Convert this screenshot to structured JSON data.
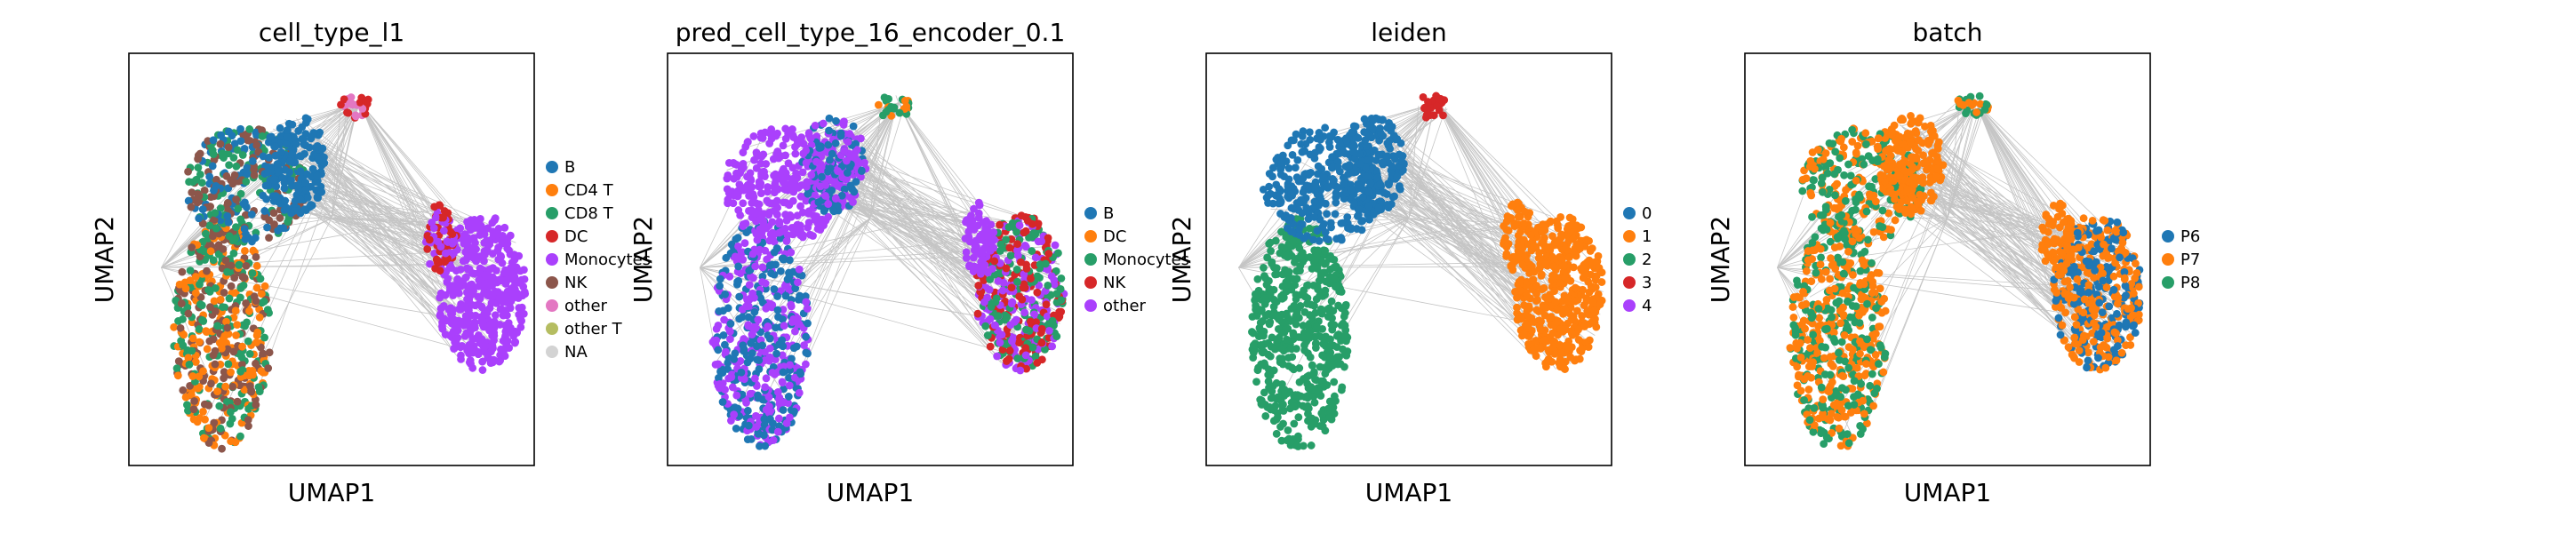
{
  "chart_data": [
    {
      "type": "scatter",
      "title": "cell_type_l1",
      "xlabel": "UMAP1",
      "ylabel": "UMAP2",
      "grid": false,
      "legend_position": "right",
      "legend": [
        {
          "label": "B",
          "color": "#1f77b4"
        },
        {
          "label": "CD4 T",
          "color": "#ff7f0e"
        },
        {
          "label": "CD8 T",
          "color": "#279e68"
        },
        {
          "label": "DC",
          "color": "#d62728"
        },
        {
          "label": "Monocytes",
          "color": "#aa40fc"
        },
        {
          "label": "NK",
          "color": "#8c564b"
        },
        {
          "label": "other",
          "color": "#e377c2"
        },
        {
          "label": "other T",
          "color": "#b5bd61"
        },
        {
          "label": "NA",
          "color": "#d3d3d3"
        }
      ]
    },
    {
      "type": "scatter",
      "title": "pred_cell_type_16_encoder_0.1",
      "xlabel": "UMAP1",
      "ylabel": "UMAP2",
      "grid": false,
      "legend_position": "right",
      "legend": [
        {
          "label": "B",
          "color": "#1f77b4"
        },
        {
          "label": "DC",
          "color": "#ff7f0e"
        },
        {
          "label": "Monocytes",
          "color": "#279e68"
        },
        {
          "label": "NK",
          "color": "#d62728"
        },
        {
          "label": "other",
          "color": "#aa40fc"
        }
      ]
    },
    {
      "type": "scatter",
      "title": "leiden",
      "xlabel": "UMAP1",
      "ylabel": "UMAP2",
      "grid": false,
      "legend_position": "right",
      "legend": [
        {
          "label": "0",
          "color": "#1f77b4"
        },
        {
          "label": "1",
          "color": "#ff7f0e"
        },
        {
          "label": "2",
          "color": "#279e68"
        },
        {
          "label": "3",
          "color": "#d62728"
        },
        {
          "label": "4",
          "color": "#aa40fc"
        }
      ]
    },
    {
      "type": "scatter",
      "title": "batch",
      "xlabel": "UMAP1",
      "ylabel": "UMAP2",
      "grid": false,
      "legend_position": "right",
      "legend": [
        {
          "label": "P6",
          "color": "#1f77b4"
        },
        {
          "label": "P7",
          "color": "#ff7f0e"
        },
        {
          "label": "P8",
          "color": "#279e68"
        }
      ]
    }
  ],
  "colors": {
    "edges": "#8c8c8c",
    "frame": "#000000",
    "background": "#ffffff"
  }
}
